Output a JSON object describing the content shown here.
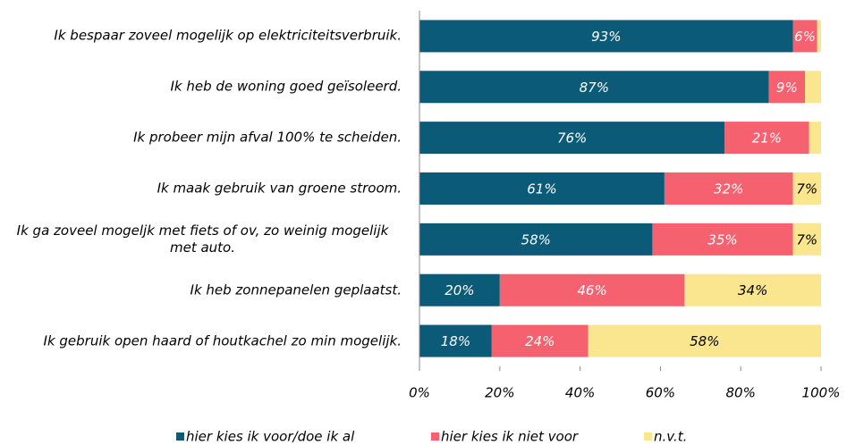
{
  "chart_data": {
    "type": "stacked_barh",
    "categories": [
      "Ik bespaar zoveel mogelijk op elektriciteitsverbruik.",
      "Ik heb de woning goed geïsoleerd.",
      "Ik probeer mijn afval 100% te scheiden.",
      "Ik maak gebruik van groene stroom.",
      "Ik ga zoveel mogeljk met fiets of ov, zo weinig mogelijk met auto.",
      "Ik heb zonnepanelen geplaatst.",
      "Ik gebruik open haard of houtkachel zo min mogelijk."
    ],
    "series": [
      {
        "name": "hier kies ik voor/doe ik al",
        "color": "#0b5a78",
        "label_color": "#ffffff",
        "values": [
          93,
          87,
          76,
          61,
          58,
          20,
          18
        ],
        "value_labels": [
          "93%",
          "87%",
          "76%",
          "61%",
          "58%",
          "20%",
          "18%"
        ]
      },
      {
        "name": "hier kies ik niet voor",
        "color": "#f5616f",
        "label_color": "#ffffff",
        "values": [
          6,
          9,
          21,
          32,
          35,
          46,
          24
        ],
        "value_labels": [
          "6%",
          "9%",
          "21%",
          "32%",
          "35%",
          "46%",
          "24%"
        ]
      },
      {
        "name": "n.v.t.",
        "color": "#fbe690",
        "label_color": "#000000",
        "values": [
          1,
          4,
          3,
          7,
          7,
          34,
          58
        ],
        "value_labels": [
          null,
          null,
          null,
          "7%",
          "7%",
          "34%",
          "58%"
        ]
      }
    ],
    "xlim": [
      0,
      100
    ],
    "xticks": [
      {
        "value": 0,
        "label": "0%"
      },
      {
        "value": 20,
        "label": "20%"
      },
      {
        "value": 40,
        "label": "40%"
      },
      {
        "value": 60,
        "label": "60%"
      },
      {
        "value": 80,
        "label": "80%"
      },
      {
        "value": 100,
        "label": "100%"
      }
    ],
    "legend": "bottom"
  }
}
